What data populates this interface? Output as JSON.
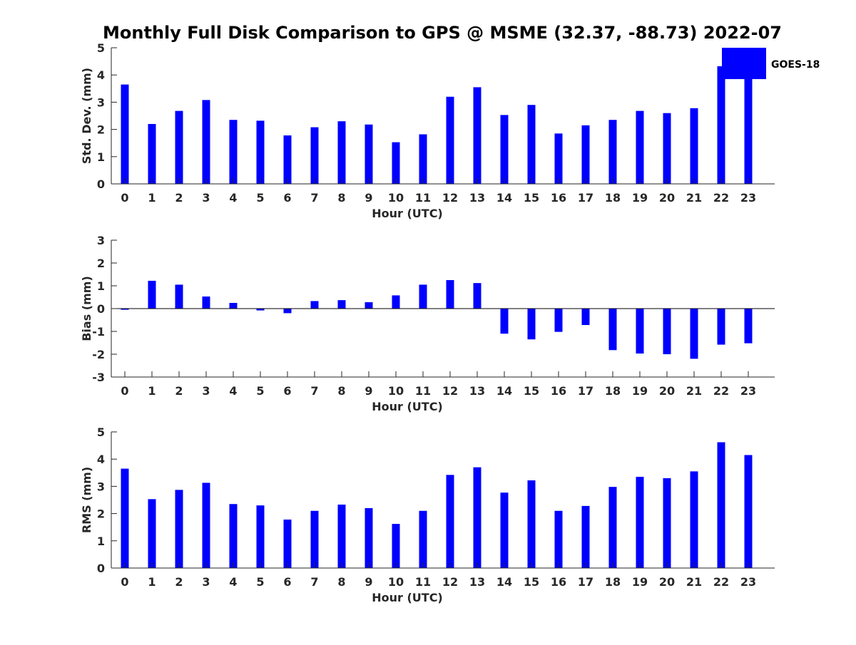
{
  "title": "Monthly Full Disk Comparison to GPS @ MSME (32.37, -88.73) 2022-07",
  "colors": {
    "bar": "#0000ff",
    "axis": "#262626",
    "zero_line": "#000000"
  },
  "legend": {
    "label": "GOES-18",
    "placement": "top-right"
  },
  "chart_data": [
    {
      "type": "bar",
      "id": "std",
      "ylabel": "Std. Dev. (mm)",
      "xlabel": "Hour (UTC)",
      "ylim": [
        0,
        5
      ],
      "yticks": [
        0,
        1,
        2,
        3,
        4,
        5
      ],
      "categories": [
        "0",
        "1",
        "2",
        "3",
        "4",
        "5",
        "6",
        "7",
        "8",
        "9",
        "10",
        "11",
        "12",
        "13",
        "14",
        "15",
        "16",
        "17",
        "18",
        "19",
        "20",
        "21",
        "22",
        "23"
      ],
      "series": [
        {
          "name": "GOES-18",
          "values": [
            3.65,
            2.2,
            2.68,
            3.08,
            2.35,
            2.32,
            1.78,
            2.08,
            2.3,
            2.18,
            1.53,
            1.82,
            3.2,
            3.55,
            2.53,
            2.9,
            1.85,
            2.15,
            2.35,
            2.68,
            2.6,
            2.78,
            4.32,
            4.0
          ]
        }
      ]
    },
    {
      "type": "bar",
      "id": "bias",
      "ylabel": "Bias (mm)",
      "xlabel": "Hour (UTC)",
      "ylim": [
        -3,
        3
      ],
      "yticks": [
        -3,
        -2,
        -1,
        0,
        1,
        2,
        3
      ],
      "categories": [
        "0",
        "1",
        "2",
        "3",
        "4",
        "5",
        "6",
        "7",
        "8",
        "9",
        "10",
        "11",
        "12",
        "13",
        "14",
        "15",
        "16",
        "17",
        "18",
        "19",
        "20",
        "21",
        "22",
        "23"
      ],
      "series": [
        {
          "name": "GOES-18",
          "values": [
            -0.05,
            1.22,
            1.05,
            0.53,
            0.25,
            -0.08,
            -0.2,
            0.33,
            0.37,
            0.28,
            0.58,
            1.05,
            1.25,
            1.12,
            -1.1,
            -1.35,
            -1.02,
            -0.72,
            -1.82,
            -1.97,
            -2.0,
            -2.2,
            -1.58,
            -1.52
          ]
        }
      ]
    },
    {
      "type": "bar",
      "id": "rms",
      "ylabel": "RMS (mm)",
      "xlabel": "Hour (UTC)",
      "ylim": [
        0,
        5
      ],
      "yticks": [
        0,
        1,
        2,
        3,
        4,
        5
      ],
      "categories": [
        "0",
        "1",
        "2",
        "3",
        "4",
        "5",
        "6",
        "7",
        "8",
        "9",
        "10",
        "11",
        "12",
        "13",
        "14",
        "15",
        "16",
        "17",
        "18",
        "19",
        "20",
        "21",
        "22",
        "23"
      ],
      "series": [
        {
          "name": "GOES-18",
          "values": [
            3.65,
            2.53,
            2.87,
            3.13,
            2.35,
            2.3,
            1.78,
            2.1,
            2.33,
            2.2,
            1.62,
            2.1,
            3.42,
            3.7,
            2.77,
            3.22,
            2.1,
            2.28,
            2.98,
            3.35,
            3.3,
            3.55,
            4.62,
            4.15
          ]
        }
      ]
    }
  ]
}
